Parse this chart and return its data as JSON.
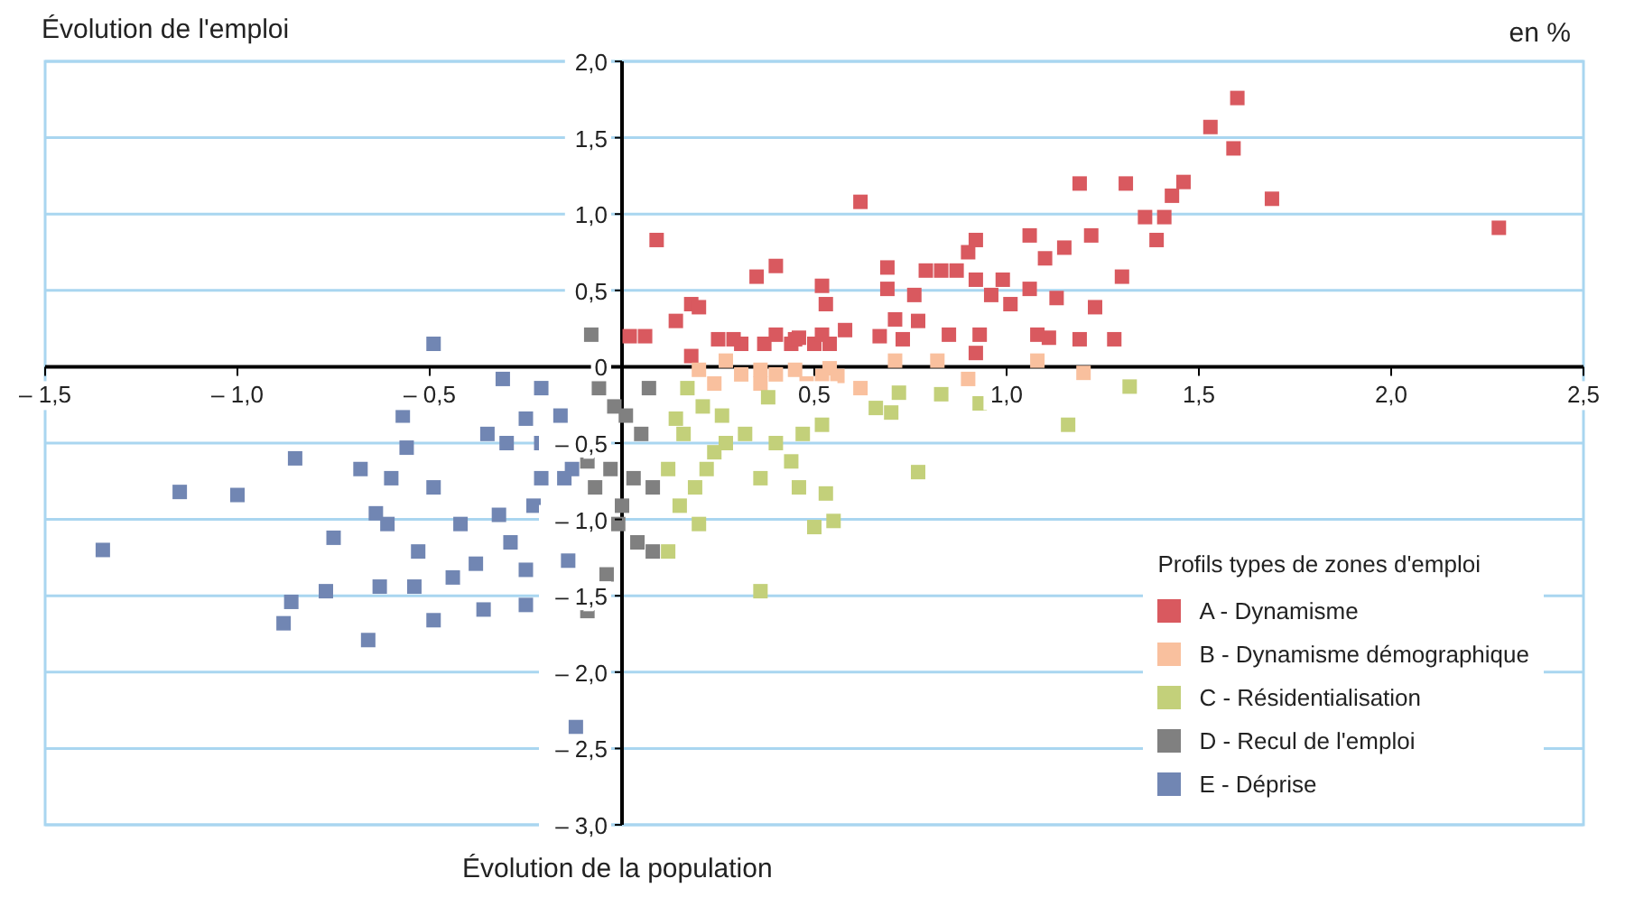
{
  "chart_data": {
    "type": "scatter",
    "ylabel": "Évolution de l'emploi",
    "xlabel": "Évolution de la population",
    "legend_title": "Profils types de zones d'emploi",
    "annotations": [
      "en %"
    ],
    "xlim": [
      -1.5,
      2.5
    ],
    "ylim": [
      -3,
      2
    ],
    "xticks": [
      {
        "value": -1.5,
        "label": "– 1,5"
      },
      {
        "value": -1,
        "label": "– 1,0"
      },
      {
        "value": -0.5,
        "label": "– 0,5"
      },
      {
        "value": 0,
        "label": null
      },
      {
        "value": 0.5,
        "label": "0,5"
      },
      {
        "value": 1,
        "label": "1,0"
      },
      {
        "value": 1.5,
        "label": "1,5"
      },
      {
        "value": 2,
        "label": "2,0"
      },
      {
        "value": 2.5,
        "label": "2,5"
      }
    ],
    "yticks": [
      {
        "value": -3,
        "label": "– 3,0"
      },
      {
        "value": -2.5,
        "label": "– 2,5"
      },
      {
        "value": -2,
        "label": "– 2,0"
      },
      {
        "value": -1.5,
        "label": "– 1,5"
      },
      {
        "value": -1,
        "label": "– 1,0"
      },
      {
        "value": -0.5,
        "label": "– 0,5"
      },
      {
        "value": 0,
        "label": "0"
      },
      {
        "value": 0.5,
        "label": "0,5"
      },
      {
        "value": 1,
        "label": "1,0"
      },
      {
        "value": 1.5,
        "label": "1,5"
      },
      {
        "value": 2,
        "label": "2,0"
      }
    ],
    "grid": "y",
    "legend": "bottom right",
    "marker": "square",
    "series": [
      {
        "name": "A - Dynamisme",
        "color": "#d9595f",
        "x": [
          0.02,
          0.09,
          0.06,
          0.14,
          0.18,
          0.2,
          0.25,
          0.18,
          0.31,
          0.35,
          0.4,
          0.29,
          0.37,
          0.44,
          0.45,
          0.5,
          0.52,
          0.53,
          0.52,
          0.54,
          0.58,
          0.62,
          0.67,
          0.69,
          0.69,
          0.71,
          0.76,
          0.79,
          0.83,
          0.85,
          0.87,
          0.9,
          0.92,
          0.92,
          0.93,
          0.92,
          0.96,
          0.99,
          1.06,
          1.06,
          1.1,
          1.11,
          1.13,
          1.15,
          1.19,
          1.19,
          1.22,
          1.28,
          1.3,
          1.31,
          1.36,
          1.39,
          1.41,
          1.43,
          1.46,
          1.53,
          1.59,
          1.6,
          1.69,
          2.28,
          1.01,
          0.73,
          0.77,
          1.08,
          1.23,
          0.4,
          0.46
        ],
        "values": [
          0.2,
          0.83,
          0.2,
          0.3,
          0.41,
          0.39,
          0.18,
          0.07,
          0.15,
          0.59,
          0.66,
          0.18,
          0.15,
          0.15,
          0.18,
          0.15,
          0.53,
          0.41,
          0.21,
          0.15,
          0.24,
          1.08,
          0.2,
          0.65,
          0.51,
          0.31,
          0.47,
          0.63,
          0.63,
          0.21,
          0.63,
          0.75,
          0.83,
          0.57,
          0.21,
          0.09,
          0.47,
          0.57,
          0.86,
          0.51,
          0.71,
          0.19,
          0.45,
          0.78,
          1.2,
          0.18,
          0.86,
          0.18,
          0.59,
          1.2,
          0.98,
          0.83,
          0.98,
          1.12,
          1.21,
          1.57,
          1.43,
          1.76,
          1.1,
          0.91,
          0.41,
          0.18,
          0.3,
          0.21,
          0.39,
          0.21,
          0.19
        ]
      },
      {
        "name": "B - Dynamisme démographique",
        "color": "#f9c09e",
        "x": [
          0.2,
          0.24,
          0.27,
          0.31,
          0.36,
          0.4,
          0.45,
          0.48,
          0.54,
          0.56,
          0.62,
          0.71,
          0.82,
          0.9,
          1.08,
          1.2,
          0.36,
          0.52
        ],
        "values": [
          -0.02,
          -0.11,
          0.04,
          -0.05,
          -0.02,
          -0.05,
          -0.02,
          -0.11,
          -0.01,
          -0.06,
          -0.14,
          0.04,
          0.04,
          -0.08,
          0.04,
          -0.04,
          -0.11,
          -0.06
        ]
      },
      {
        "name": "C - Résidentialisation",
        "color": "#c3d07a",
        "x": [
          0.17,
          0.14,
          0.16,
          0.12,
          0.15,
          0.12,
          0.2,
          0.22,
          0.26,
          0.27,
          0.32,
          0.36,
          0.36,
          0.4,
          0.44,
          0.46,
          0.47,
          0.52,
          0.53,
          0.55,
          0.5,
          0.66,
          0.7,
          0.77,
          0.72,
          0.83,
          0.93,
          1.16,
          1.32,
          0.21,
          0.24,
          0.19,
          0.38
        ],
        "values": [
          -0.14,
          -0.34,
          -0.44,
          -0.67,
          -0.91,
          -1.21,
          -1.03,
          -0.67,
          -0.32,
          -0.5,
          -0.44,
          -0.73,
          -1.47,
          -0.5,
          -0.62,
          -0.79,
          -0.44,
          -0.38,
          -0.83,
          -1.01,
          -1.05,
          -0.27,
          -0.3,
          -0.69,
          -0.17,
          -0.18,
          -0.24,
          -0.38,
          -0.13,
          -0.26,
          -0.56,
          -0.79,
          -0.2
        ]
      },
      {
        "name": "D - Recul de l'emploi",
        "color": "#808080",
        "x": [
          -0.08,
          -0.06,
          -0.02,
          0.01,
          0.05,
          -0.03,
          0.03,
          -0.07,
          0,
          0.04,
          -0.04,
          -0.09,
          0.08,
          0.07,
          -0.09,
          -0.01,
          0.08
        ],
        "values": [
          0.21,
          -0.14,
          -0.26,
          -0.32,
          -0.44,
          -0.67,
          -0.73,
          -0.79,
          -0.91,
          -1.15,
          -1.36,
          -1.6,
          -1.21,
          -0.14,
          -0.62,
          -1.03,
          -0.79
        ]
      },
      {
        "name": "E - Déprise",
        "color": "#7186b3",
        "x": [
          -0.49,
          -0.31,
          -0.21,
          -0.25,
          -0.35,
          -0.3,
          -0.21,
          -0.16,
          -0.13,
          -0.15,
          -0.23,
          -0.32,
          -0.29,
          -0.38,
          -0.42,
          -0.49,
          -0.56,
          -0.57,
          -0.68,
          -0.6,
          -0.61,
          -0.53,
          -0.44,
          -0.49,
          -0.66,
          -0.75,
          -0.77,
          -0.86,
          -0.88,
          -0.85,
          -1,
          -1.15,
          -1.35,
          -0.25,
          -0.25,
          -0.12,
          -0.14,
          -0.36,
          -0.63,
          -0.64,
          -0.54,
          -0.21
        ],
        "values": [
          0.15,
          -0.08,
          -0.14,
          -0.34,
          -0.44,
          -0.5,
          -0.5,
          -0.32,
          -0.67,
          -0.73,
          -0.91,
          -0.97,
          -1.15,
          -1.29,
          -1.03,
          -0.79,
          -0.53,
          -0.32,
          -0.67,
          -0.73,
          -1.03,
          -1.21,
          -1.38,
          -1.66,
          -1.79,
          -1.12,
          -1.47,
          -1.54,
          -1.68,
          -0.6,
          -0.84,
          -0.82,
          -1.2,
          -1.56,
          -1.33,
          -2.36,
          -1.27,
          -1.59,
          -1.44,
          -0.96,
          -1.44,
          -0.73
        ]
      }
    ]
  }
}
